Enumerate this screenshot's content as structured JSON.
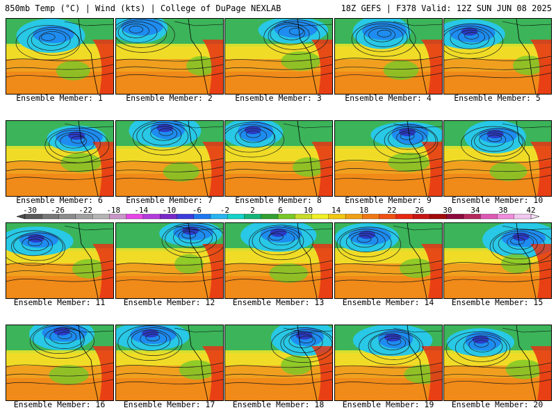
{
  "header": {
    "left": "850mb Temp (°C) | Wind (kts) | College of DuPage NEXLAB",
    "right": "18Z GEFS | F378 Valid: 12Z SUN JUN 08 2025"
  },
  "members": [
    "Ensemble Member: 1",
    "Ensemble Member: 2",
    "Ensemble Member: 3",
    "Ensemble Member: 4",
    "Ensemble Member: 5",
    "Ensemble Member: 6",
    "Ensemble Member: 7",
    "Ensemble Member: 8",
    "Ensemble Member: 9",
    "Ensemble Member: 10",
    "Ensemble Member: 11",
    "Ensemble Member: 12",
    "Ensemble Member: 13",
    "Ensemble Member: 14",
    "Ensemble Member: 15",
    "Ensemble Member: 16",
    "Ensemble Member: 17",
    "Ensemble Member: 18",
    "Ensemble Member: 19",
    "Ensemble Member: 20"
  ],
  "colorbar": {
    "labels": [
      "-30",
      "-26",
      "-22",
      "-18",
      "-14",
      "-10",
      "-6",
      "-2",
      "2",
      "6",
      "10",
      "14",
      "18",
      "22",
      "26",
      "30",
      "34",
      "38",
      "42"
    ],
    "colors": [
      "#5a5a5a",
      "#777777",
      "#8c8c8c",
      "#a0a0a0",
      "#b4b4b4",
      "#c896c8",
      "#e646e6",
      "#b43cdc",
      "#7828c8",
      "#3c3cdc",
      "#1e78f0",
      "#28b4f0",
      "#14d2c8",
      "#14b478",
      "#32a032",
      "#78c828",
      "#c8dc28",
      "#f0f028",
      "#f0c814",
      "#f0a014",
      "#f07814",
      "#f05014",
      "#e62814",
      "#c81414",
      "#a00a0a",
      "#8c0a3c",
      "#b4285a",
      "#dc5ab4",
      "#f08cdc",
      "#f0c8f0"
    ]
  },
  "palette": {
    "cold_deep": "#2a3cc8",
    "cold": "#1e8cf0",
    "cool": "#28c8e6",
    "mild": "#3cb45a",
    "green": "#78c828",
    "yellow": "#f0e628",
    "orange": "#f0a01e",
    "warm": "#f07814",
    "hot": "#e63214",
    "contour": "#1a1a1a"
  }
}
